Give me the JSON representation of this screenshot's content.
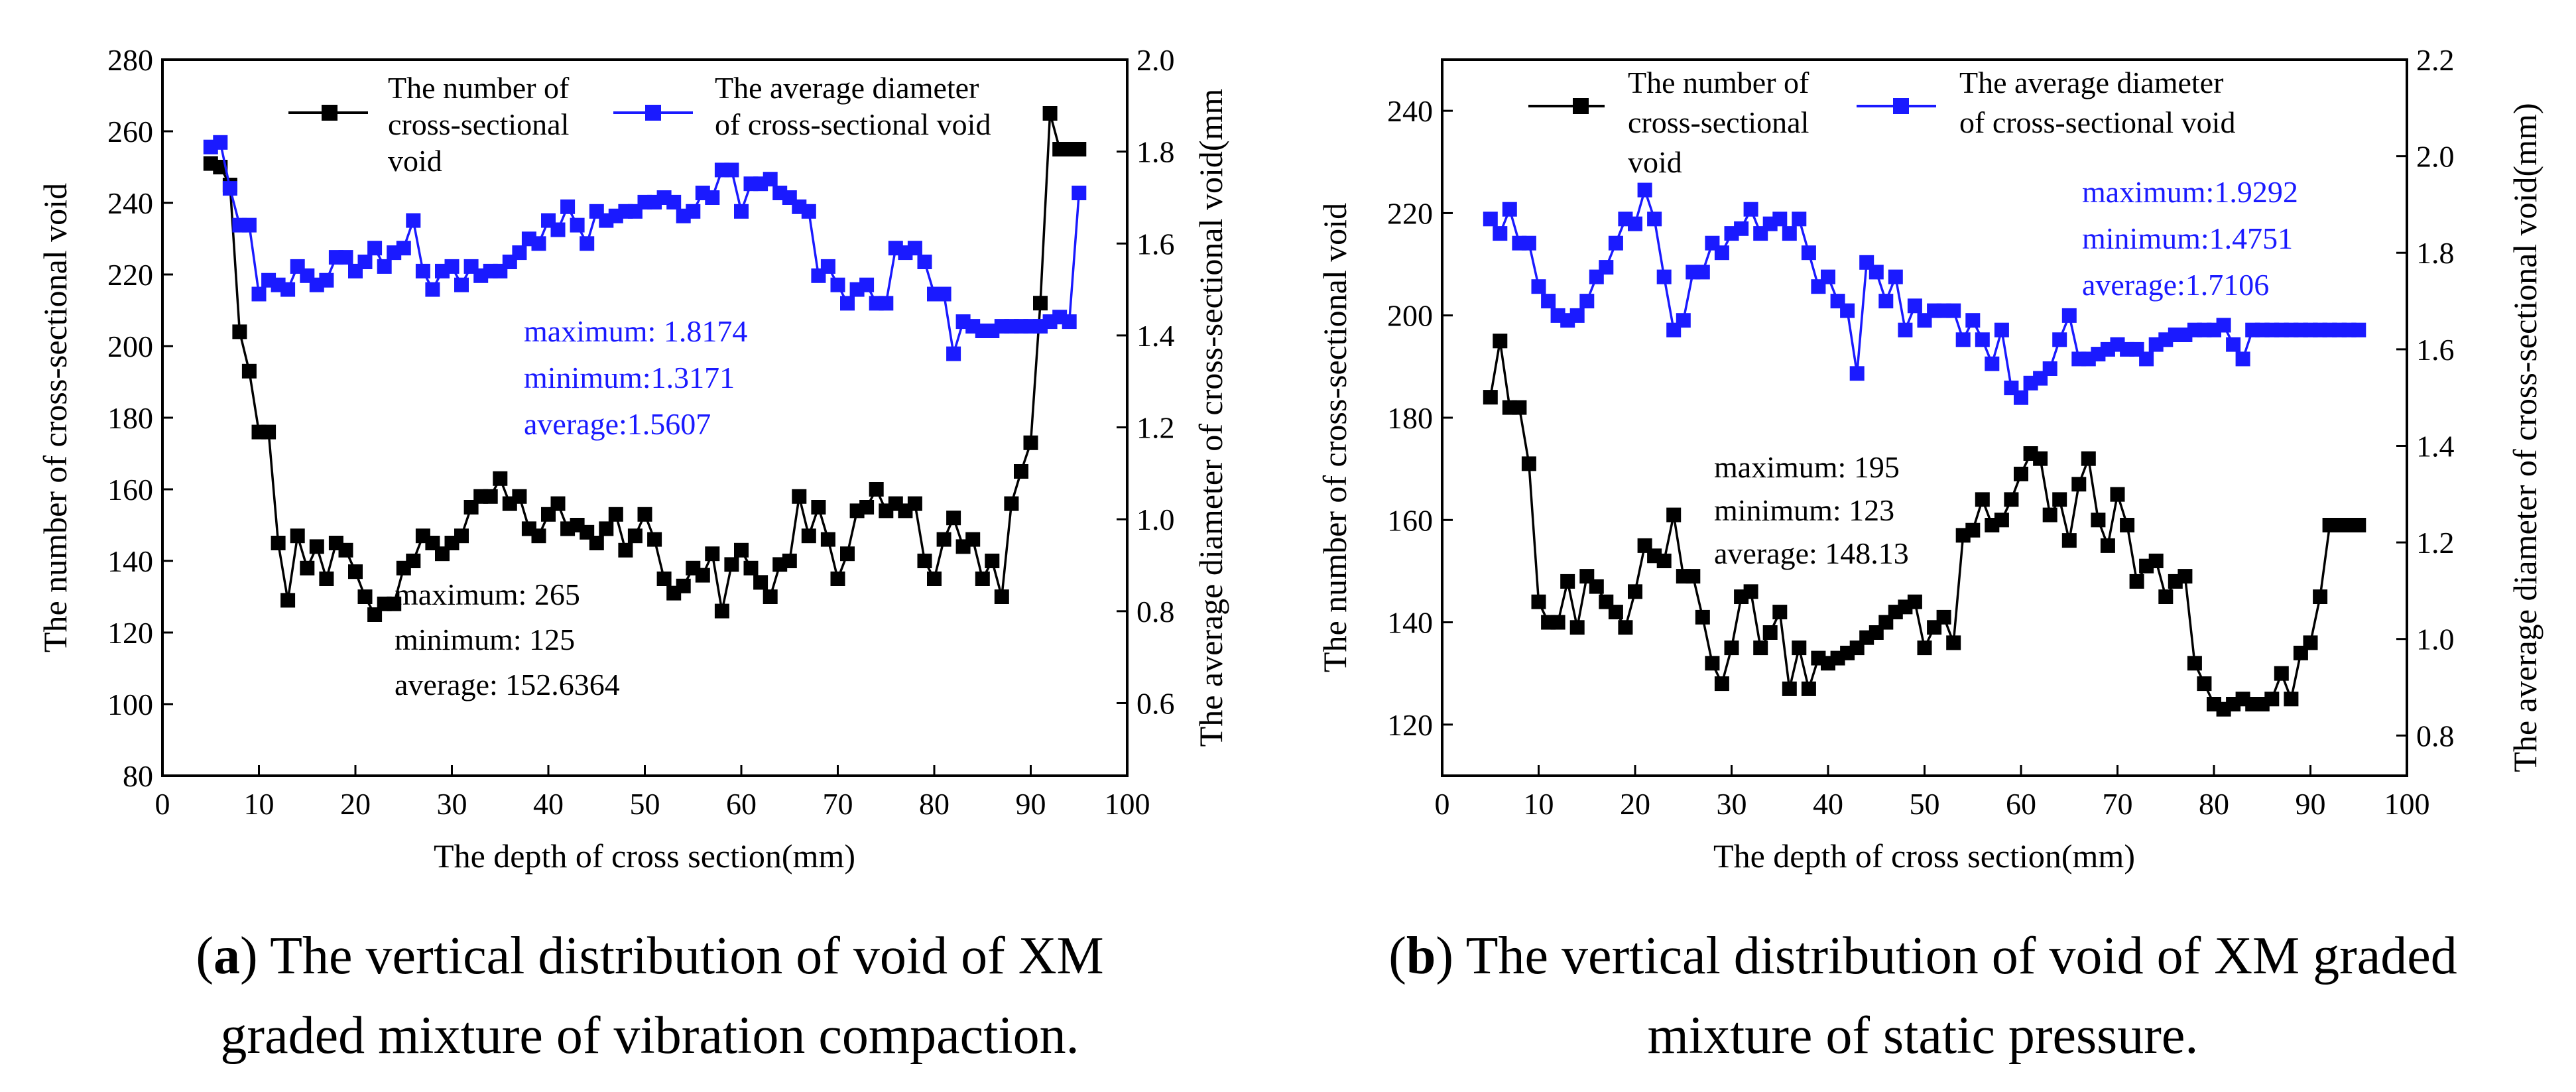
{
  "colors": {
    "count": "#000000",
    "diameter": "#1a1aff"
  },
  "chart_data": [
    {
      "id": "a",
      "type": "line",
      "xlabel": "The depth of cross section(mm)",
      "ylabel": "The number of cross-sectional void",
      "y2label": "The average diameter of cross-sectional void(mm",
      "xlim": [
        0,
        100
      ],
      "ylim": [
        80,
        280
      ],
      "y2lim": [
        0.442,
        2.0
      ],
      "xticks": [
        "0",
        "10",
        "20",
        "30",
        "40",
        "50",
        "60",
        "70",
        "80",
        "90",
        "100"
      ],
      "yticks": [
        "80",
        "100",
        "120",
        "140",
        "160",
        "180",
        "200",
        "220",
        "240",
        "260",
        "280"
      ],
      "y2ticks": [
        "0.6",
        "0.8",
        "1.0",
        "1.2",
        "1.4",
        "1.6",
        "1.8",
        "2.0"
      ],
      "legend": {
        "count_lines": [
          "The number of",
          "cross-sectional",
          "void"
        ],
        "diameter_lines": [
          "The average diameter",
          "of cross-sectional void"
        ]
      },
      "count_stats": [
        "maximum: 265",
        "minimum: 125",
        "average: 152.6364"
      ],
      "diameter_stats": [
        "maximum: 1.8174",
        "minimum:1.3171",
        "average:1.5607"
      ],
      "caption_bold": "a",
      "caption_line1": ") The vertical distribution of void of XM",
      "caption_line2": "graded mixture of vibration compaction.",
      "series": [
        {
          "name": "The number of cross-sectional void",
          "axis": "left",
          "x": [
            5,
            6,
            7,
            8,
            9,
            10,
            11,
            12,
            13,
            14,
            15,
            16,
            17,
            18,
            19,
            20,
            21,
            22,
            23,
            24,
            25,
            26,
            27,
            28,
            29,
            30,
            31,
            32,
            33,
            34,
            35,
            36,
            37,
            38,
            39,
            40,
            41,
            42,
            43,
            44,
            45,
            46,
            47,
            48,
            49,
            50,
            51,
            52,
            53,
            54,
            55,
            56,
            57,
            58,
            59,
            60,
            61,
            62,
            63,
            64,
            65,
            66,
            67,
            68,
            69,
            70,
            71,
            72,
            73,
            74,
            75,
            76,
            77,
            78,
            79,
            80,
            81,
            82,
            83,
            84,
            85,
            86,
            87,
            88,
            89,
            90,
            91,
            92,
            93,
            94,
            95
          ],
          "values": [
            251,
            250,
            245,
            204,
            193,
            176,
            176,
            145,
            129,
            147,
            138,
            144,
            135,
            145,
            143,
            137,
            130,
            125,
            128,
            128,
            138,
            140,
            147,
            145,
            142,
            145,
            147,
            155,
            158,
            158,
            163,
            156,
            158,
            149,
            147,
            153,
            156,
            149,
            150,
            148,
            145,
            149,
            153,
            143,
            147,
            153,
            146,
            135,
            131,
            133,
            138,
            136,
            142,
            126,
            139,
            143,
            138,
            134,
            130,
            139,
            140,
            158,
            147,
            155,
            146,
            135,
            142,
            154,
            155,
            160,
            154,
            156,
            154,
            156,
            140,
            135,
            146,
            152,
            144,
            146,
            135,
            140,
            130,
            156,
            165,
            173,
            212,
            265,
            255,
            255,
            255
          ]
        },
        {
          "name": "The average diameter of cross-sectional void",
          "axis": "right",
          "x": [
            5,
            6,
            7,
            8,
            9,
            10,
            11,
            12,
            13,
            14,
            15,
            16,
            17,
            18,
            19,
            20,
            21,
            22,
            23,
            24,
            25,
            26,
            27,
            28,
            29,
            30,
            31,
            32,
            33,
            34,
            35,
            36,
            37,
            38,
            39,
            40,
            41,
            42,
            43,
            44,
            45,
            46,
            47,
            48,
            49,
            50,
            51,
            52,
            53,
            54,
            55,
            56,
            57,
            58,
            59,
            60,
            61,
            62,
            63,
            64,
            65,
            66,
            67,
            68,
            69,
            70,
            71,
            72,
            73,
            74,
            75,
            76,
            77,
            78,
            79,
            80,
            81,
            82,
            83,
            84,
            85,
            86,
            87,
            88,
            89,
            90,
            91,
            92,
            93,
            94,
            95
          ],
          "values": [
            1.81,
            1.82,
            1.72,
            1.64,
            1.64,
            1.49,
            1.52,
            1.51,
            1.5,
            1.55,
            1.53,
            1.51,
            1.52,
            1.57,
            1.57,
            1.54,
            1.56,
            1.59,
            1.55,
            1.58,
            1.59,
            1.65,
            1.54,
            1.5,
            1.54,
            1.55,
            1.51,
            1.55,
            1.53,
            1.54,
            1.54,
            1.56,
            1.58,
            1.61,
            1.6,
            1.65,
            1.63,
            1.68,
            1.64,
            1.6,
            1.67,
            1.65,
            1.66,
            1.67,
            1.67,
            1.69,
            1.69,
            1.7,
            1.69,
            1.66,
            1.67,
            1.71,
            1.7,
            1.76,
            1.76,
            1.67,
            1.73,
            1.73,
            1.74,
            1.71,
            1.7,
            1.68,
            1.67,
            1.53,
            1.55,
            1.51,
            1.47,
            1.5,
            1.51,
            1.47,
            1.47,
            1.59,
            1.58,
            1.59,
            1.56,
            1.49,
            1.49,
            1.36,
            1.43,
            1.42,
            1.41,
            1.41,
            1.42,
            1.42,
            1.42,
            1.42,
            1.42,
            1.43,
            1.44,
            1.43,
            1.71
          ]
        }
      ]
    },
    {
      "id": "b",
      "type": "line",
      "xlabel": "The depth of cross section(mm)",
      "ylabel": "The number of cross-sectional void",
      "y2label": "The average diameter of cross-sectional void(mm)",
      "xlim": [
        0,
        100
      ],
      "ylim": [
        110,
        250
      ],
      "y2lim": [
        0.7167,
        2.2
      ],
      "xticks": [
        "0",
        "10",
        "20",
        "30",
        "40",
        "50",
        "60",
        "70",
        "80",
        "90",
        "100"
      ],
      "yticks": [
        "120",
        "140",
        "160",
        "180",
        "200",
        "220",
        "240"
      ],
      "y2ticks": [
        "0.8",
        "1.0",
        "1.2",
        "1.4",
        "1.6",
        "1.8",
        "2.0",
        "2.2"
      ],
      "legend": {
        "count_lines": [
          "The number of",
          "cross-sectional",
          "void"
        ],
        "diameter_lines": [
          "The average diameter",
          "of cross-sectional void"
        ]
      },
      "count_stats": [
        "maximum: 195",
        "minimum: 123",
        "average: 148.13"
      ],
      "diameter_stats": [
        "maximum:1.9292",
        "minimum:1.4751",
        "average:1.7106"
      ],
      "caption_bold": "b",
      "caption_line1": ") The vertical distribution of void of XM graded",
      "caption_line2": "mixture of static pressure.",
      "series": [
        {
          "name": "The number of cross-sectional void",
          "axis": "left",
          "x": [
            5,
            6,
            7,
            8,
            9,
            10,
            11,
            12,
            13,
            14,
            15,
            16,
            17,
            18,
            19,
            20,
            21,
            22,
            23,
            24,
            25,
            26,
            27,
            28,
            29,
            30,
            31,
            32,
            33,
            34,
            35,
            36,
            37,
            38,
            39,
            40,
            41,
            42,
            43,
            44,
            45,
            46,
            47,
            48,
            49,
            50,
            51,
            52,
            53,
            54,
            55,
            56,
            57,
            58,
            59,
            60,
            61,
            62,
            63,
            64,
            65,
            66,
            67,
            68,
            69,
            70,
            71,
            72,
            73,
            74,
            75,
            76,
            77,
            78,
            79,
            80,
            81,
            82,
            83,
            84,
            85,
            86,
            87,
            88,
            89,
            90,
            91,
            92,
            93,
            94,
            95
          ],
          "values": [
            184,
            195,
            182,
            182,
            171,
            144,
            140,
            140,
            148,
            139,
            149,
            147,
            144,
            142,
            139,
            146,
            155,
            153,
            152,
            161,
            149,
            149,
            141,
            132,
            128,
            135,
            145,
            146,
            135,
            138,
            142,
            127,
            135,
            127,
            133,
            132,
            133,
            134,
            135,
            137,
            138,
            140,
            142,
            143,
            144,
            135,
            139,
            141,
            136,
            157,
            158,
            164,
            159,
            160,
            164,
            169,
            173,
            172,
            161,
            164,
            156,
            167,
            172,
            160,
            155,
            165,
            159,
            148,
            151,
            152,
            145,
            148,
            149,
            132,
            128,
            124,
            123,
            124,
            125,
            124,
            124,
            125,
            130,
            125,
            134,
            136,
            145,
            159,
            159,
            159,
            159
          ]
        },
        {
          "name": "The average diameter of cross-sectional void",
          "axis": "right",
          "x": [
            5,
            6,
            7,
            8,
            9,
            10,
            11,
            12,
            13,
            14,
            15,
            16,
            17,
            18,
            19,
            20,
            21,
            22,
            23,
            24,
            25,
            26,
            27,
            28,
            29,
            30,
            31,
            32,
            33,
            34,
            35,
            36,
            37,
            38,
            39,
            40,
            41,
            42,
            43,
            44,
            45,
            46,
            47,
            48,
            49,
            50,
            51,
            52,
            53,
            54,
            55,
            56,
            57,
            58,
            59,
            60,
            61,
            62,
            63,
            64,
            65,
            66,
            67,
            68,
            69,
            70,
            71,
            72,
            73,
            74,
            75,
            76,
            77,
            78,
            79,
            80,
            81,
            82,
            83,
            84,
            85,
            86,
            87,
            88,
            89,
            90,
            91,
            92,
            93,
            94,
            95
          ],
          "values": [
            1.87,
            1.84,
            1.89,
            1.82,
            1.82,
            1.73,
            1.7,
            1.67,
            1.66,
            1.67,
            1.7,
            1.75,
            1.77,
            1.82,
            1.87,
            1.86,
            1.93,
            1.87,
            1.75,
            1.64,
            1.66,
            1.76,
            1.76,
            1.82,
            1.8,
            1.84,
            1.85,
            1.89,
            1.84,
            1.86,
            1.87,
            1.84,
            1.87,
            1.8,
            1.73,
            1.75,
            1.7,
            1.68,
            1.55,
            1.78,
            1.76,
            1.7,
            1.75,
            1.64,
            1.69,
            1.66,
            1.68,
            1.68,
            1.68,
            1.62,
            1.66,
            1.62,
            1.57,
            1.64,
            1.52,
            1.5,
            1.53,
            1.54,
            1.56,
            1.62,
            1.67,
            1.58,
            1.58,
            1.59,
            1.6,
            1.61,
            1.6,
            1.6,
            1.58,
            1.61,
            1.62,
            1.63,
            1.63,
            1.64,
            1.64,
            1.64,
            1.65,
            1.61,
            1.58,
            1.64,
            1.64,
            1.64,
            1.64,
            1.64,
            1.64,
            1.64,
            1.64,
            1.64,
            1.64,
            1.64,
            1.64
          ]
        }
      ]
    }
  ]
}
